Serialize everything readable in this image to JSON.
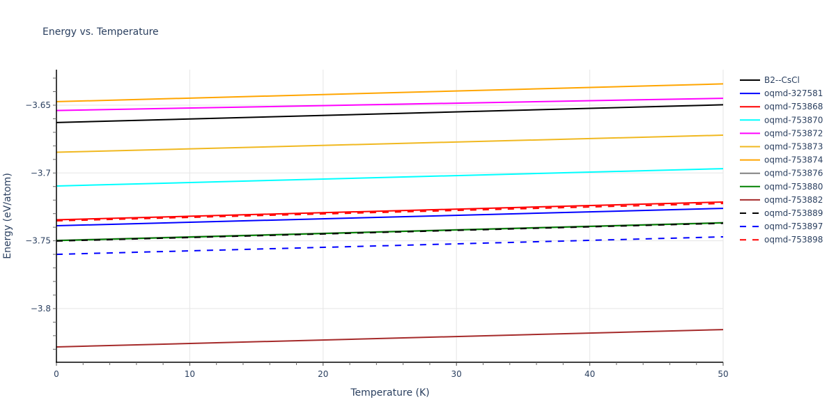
{
  "chart_data": {
    "type": "line",
    "title": "Energy vs. Temperature",
    "xlabel": "Temperature (K)",
    "ylabel": "Energy (eV/atom)",
    "xlim": [
      0,
      50
    ],
    "ylim": [
      -3.8396,
      -3.6238
    ],
    "x_ticks": [
      0,
      10,
      20,
      30,
      40,
      50
    ],
    "x_tick_labels": [
      "0",
      "10",
      "20",
      "30",
      "40",
      "50"
    ],
    "y_ticks": [
      -3.65,
      -3.7,
      -3.75,
      -3.8
    ],
    "y_tick_labels": [
      "−3.65",
      "−3.7",
      "−3.75",
      "−3.8"
    ],
    "grid": true,
    "legend_position": "right",
    "x": [
      0,
      50
    ],
    "series": [
      {
        "name": "B2--CsCl",
        "color": "#000000",
        "dash": "solid",
        "values": [
          -3.6628,
          -3.6497
        ]
      },
      {
        "name": "oqmd-327581",
        "color": "#0000ff",
        "dash": "solid",
        "values": [
          -3.7389,
          -3.7261
        ]
      },
      {
        "name": "oqmd-753868",
        "color": "#ff0000",
        "dash": "solid",
        "values": [
          -3.7345,
          -3.7214
        ]
      },
      {
        "name": "oqmd-753870",
        "color": "#00ffff",
        "dash": "solid",
        "values": [
          -3.7096,
          -3.6968
        ]
      },
      {
        "name": "oqmd-753872",
        "color": "#ff00ff",
        "dash": "solid",
        "values": [
          -3.6539,
          -3.6449
        ]
      },
      {
        "name": "oqmd-753873",
        "color": "#f0b820",
        "dash": "solid",
        "values": [
          -3.6847,
          -3.6721
        ]
      },
      {
        "name": "oqmd-753874",
        "color": "#ffa500",
        "dash": "solid",
        "values": [
          -3.6474,
          -3.6343
        ]
      },
      {
        "name": "oqmd-753876",
        "color": "#808080",
        "dash": "solid",
        "values": [
          -3.7497,
          -3.7366
        ]
      },
      {
        "name": "oqmd-753880",
        "color": "#008000",
        "dash": "solid",
        "values": [
          -3.7499,
          -3.7368
        ]
      },
      {
        "name": "oqmd-753882",
        "color": "#a52a2a",
        "dash": "solid",
        "values": [
          -3.8283,
          -3.8155
        ]
      },
      {
        "name": "oqmd-753889",
        "color": "#000000",
        "dash": "dash",
        "values": [
          -3.7502,
          -3.7371
        ]
      },
      {
        "name": "oqmd-753897",
        "color": "#0000ff",
        "dash": "dash",
        "values": [
          -3.76,
          -3.7471
        ]
      },
      {
        "name": "oqmd-753898",
        "color": "#ff0000",
        "dash": "dash",
        "values": [
          -3.7353,
          -3.7225
        ]
      }
    ]
  }
}
